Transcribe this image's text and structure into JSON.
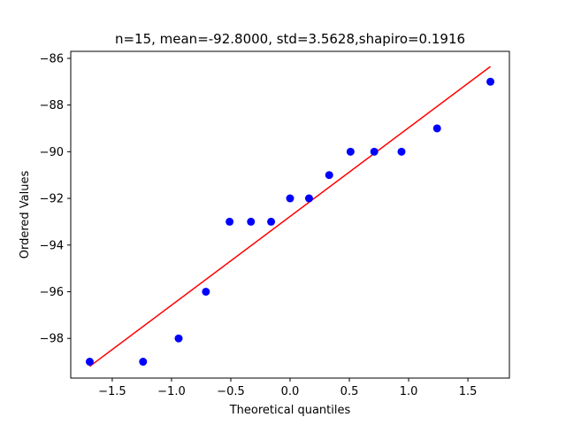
{
  "chart_data": {
    "type": "scatter",
    "title": "n=15, mean=-92.8000, std=3.5628,shapiro=0.1916",
    "xlabel": "Theoretical quantiles",
    "ylabel": "Ordered Values",
    "xlim": [
      -1.85,
      1.85
    ],
    "ylim": [
      -99.7,
      -85.7
    ],
    "grid": false,
    "legend": "none",
    "x_ticks": [
      -1.5,
      -1.0,
      -0.5,
      0.0,
      0.5,
      1.0,
      1.5
    ],
    "x_tick_labels": [
      "−1.5",
      "−1.0",
      "−0.5",
      "0.0",
      "0.5",
      "1.0",
      "1.5"
    ],
    "y_ticks": [
      -86,
      -88,
      -90,
      -92,
      -94,
      -96,
      -98
    ],
    "y_tick_labels": [
      "−86",
      "−88",
      "−90",
      "−92",
      "−94",
      "−96",
      "−98"
    ],
    "series": [
      {
        "type": "scatter",
        "color": "#0000ff",
        "x": [
          -1.69,
          -1.24,
          -0.94,
          -0.71,
          -0.51,
          -0.33,
          -0.16,
          0.0,
          0.16,
          0.33,
          0.51,
          0.71,
          0.94,
          1.24,
          1.69
        ],
        "y": [
          -99,
          -99,
          -98,
          -96,
          -93,
          -93,
          -93,
          -92,
          -92,
          -91,
          -90,
          -90,
          -90,
          -89,
          -87
        ]
      },
      {
        "type": "line",
        "color": "#ff0000",
        "x": [
          -1.69,
          1.69
        ],
        "y": [
          -99.2,
          -86.35
        ]
      }
    ]
  }
}
